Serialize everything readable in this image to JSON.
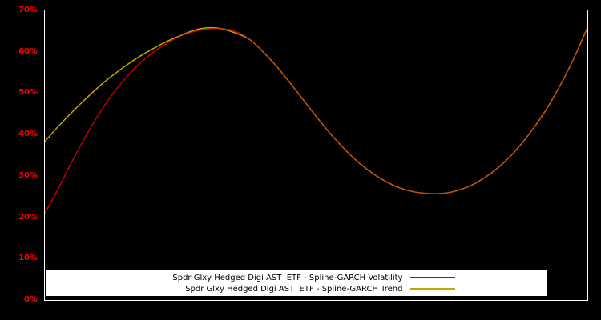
{
  "page": {
    "background": "#000000"
  },
  "chart_data": {
    "type": "line",
    "title": "",
    "xlabel": "",
    "ylabel": "",
    "ylim": [
      0,
      70
    ],
    "grid": false,
    "legend_position": "bottom-center",
    "background": "#000000",
    "border_color": "#ffffff",
    "axis_label_color": "#ff0000",
    "legend_background": "#ffffff",
    "legend_text_color": "#000000",
    "yticks": [
      {
        "value": 0,
        "label": "0%"
      },
      {
        "value": 10,
        "label": "10%"
      },
      {
        "value": 20,
        "label": "20%"
      },
      {
        "value": 30,
        "label": "30%"
      },
      {
        "value": 40,
        "label": "40%"
      },
      {
        "value": 50,
        "label": "50%"
      },
      {
        "value": 60,
        "label": "60%"
      },
      {
        "value": 70,
        "label": "70%"
      }
    ],
    "x": [
      0,
      2.5,
      5,
      7.5,
      10,
      12.5,
      15,
      17.5,
      20,
      22.5,
      25,
      27.5,
      30,
      32.5,
      35,
      37.5,
      40,
      42.5,
      45,
      47.5,
      50,
      52.5,
      55,
      57.5,
      60,
      62.5,
      65,
      67.5,
      70,
      72.5,
      75,
      77.5,
      80,
      82.5,
      85,
      87.5,
      90,
      92.5,
      95,
      97.5,
      100
    ],
    "series": [
      {
        "name": "Spdr Glxy Hedged Digi AST  ETF - Spline-GARCH Volatility",
        "color": "#cc0000",
        "values": [
          21.0,
          27.0,
          33.5,
          39.5,
          45.0,
          49.8,
          53.8,
          57.2,
          59.9,
          62.1,
          63.8,
          64.9,
          65.5,
          65.6,
          65.0,
          63.2,
          60.3,
          56.8,
          52.8,
          48.6,
          44.4,
          40.4,
          36.8,
          33.6,
          31.0,
          28.9,
          27.3,
          26.3,
          25.8,
          25.7,
          26.1,
          27.1,
          28.7,
          30.9,
          33.7,
          37.2,
          41.4,
          46.2,
          51.9,
          58.4,
          65.8
        ]
      },
      {
        "name": "Spdr Glxy Hedged Digi AST  ETF - Spline-GARCH Trend",
        "color": "#c0a800",
        "values": [
          38.3,
          42.0,
          45.4,
          48.6,
          51.6,
          54.3,
          56.7,
          58.9,
          60.8,
          62.5,
          63.9,
          65.2,
          65.8,
          65.6,
          64.6,
          63.2,
          60.3,
          56.8,
          52.8,
          48.6,
          44.4,
          40.4,
          36.8,
          33.6,
          31.0,
          28.9,
          27.3,
          26.3,
          25.8,
          25.7,
          26.1,
          27.1,
          28.7,
          30.9,
          33.7,
          37.2,
          41.4,
          46.2,
          51.9,
          58.4,
          65.8
        ]
      }
    ]
  }
}
